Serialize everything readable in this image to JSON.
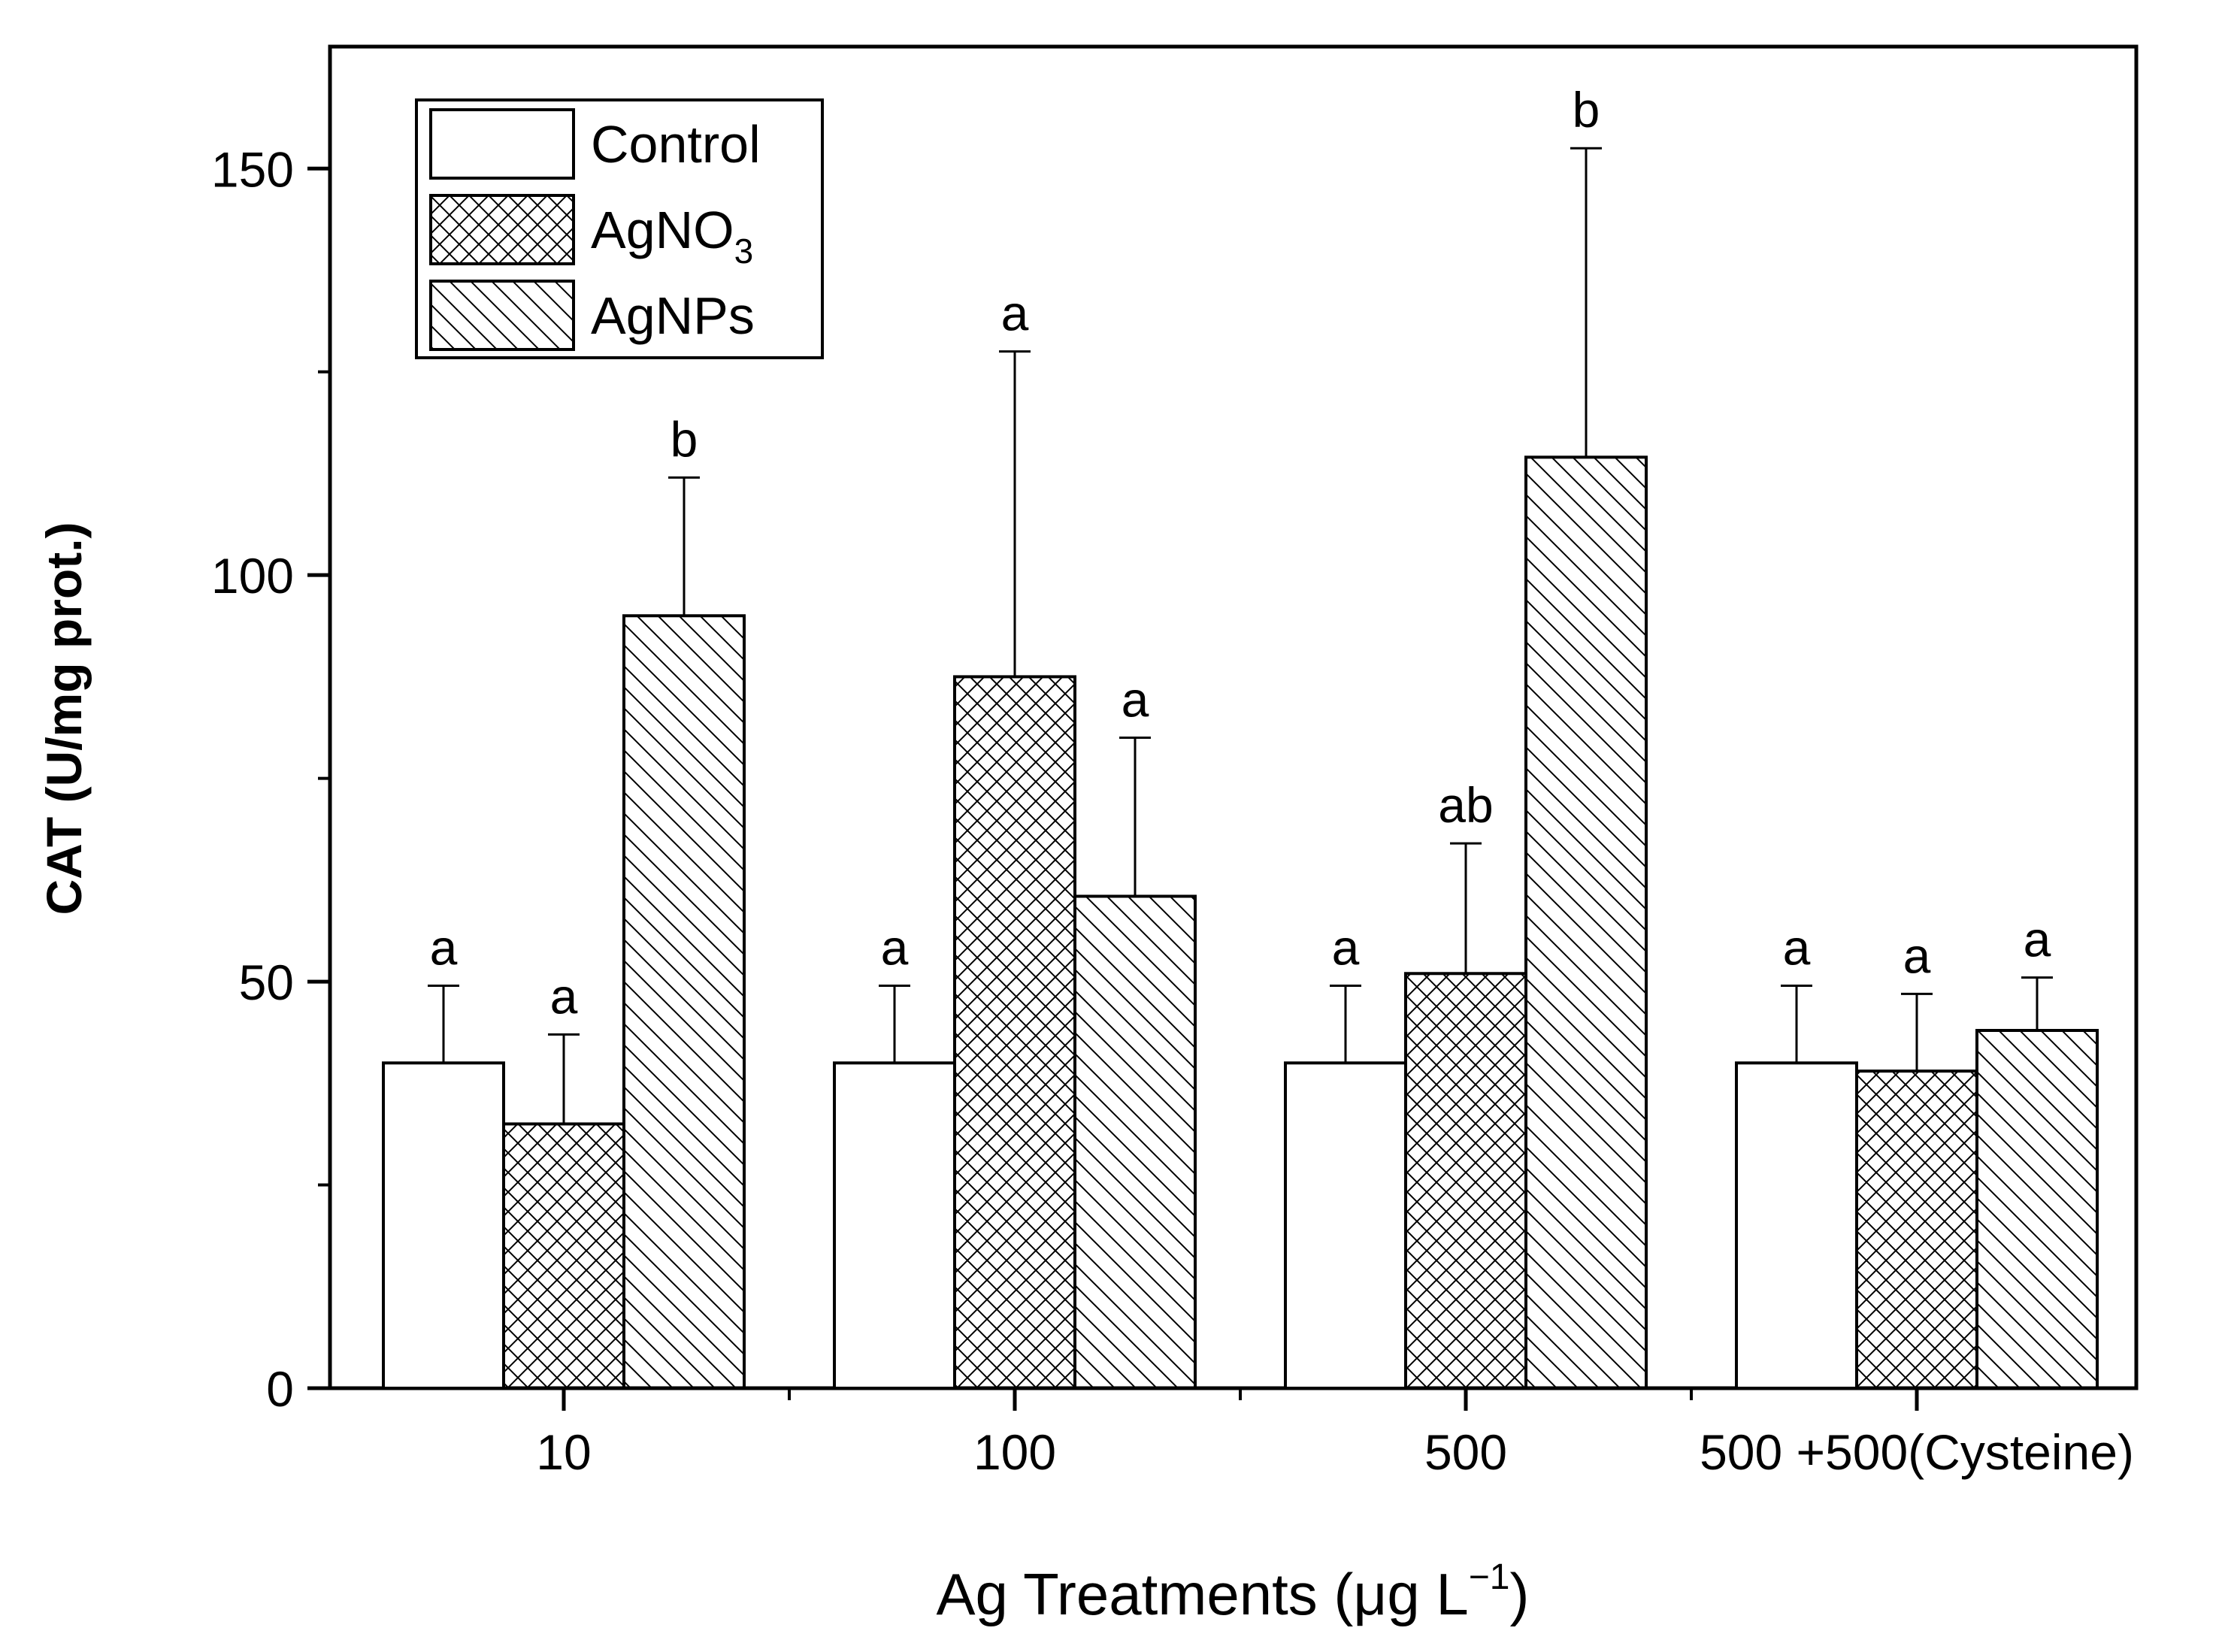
{
  "chart_data": {
    "type": "bar",
    "title": "",
    "xlabel_main": "Ag Treatments (μg L",
    "xlabel_sup": "−1",
    "xlabel_close": ")",
    "ylabel": "CAT (U/mg prot.)",
    "ylim": [
      0,
      165
    ],
    "yticks": [
      0,
      50,
      100,
      150
    ],
    "ytick_labels": [
      "0",
      "50",
      "100",
      "150"
    ],
    "categories": [
      "10",
      "100",
      "500",
      "500 +500(Cysteine)"
    ],
    "series": [
      {
        "name": "Control",
        "legend_main": "Control",
        "legend_sub": "",
        "pattern": "none",
        "values": [
          40,
          40,
          40,
          40
        ],
        "errors": [
          9.5,
          9.5,
          9.5,
          9.5
        ],
        "letters": [
          "a",
          "a",
          "a",
          "a"
        ]
      },
      {
        "name": "AgNO3",
        "legend_main": "AgNO",
        "legend_sub": "3",
        "pattern": "crosshatch",
        "values": [
          32.5,
          87.5,
          51,
          39
        ],
        "errors": [
          11,
          40,
          16,
          9.5
        ],
        "letters": [
          "a",
          "a",
          "ab",
          "a"
        ]
      },
      {
        "name": "AgNPs",
        "legend_main": "AgNPs",
        "legend_sub": "",
        "pattern": "diagonal",
        "values": [
          95,
          60.5,
          114.5,
          44
        ],
        "errors": [
          17,
          19.5,
          38,
          6.5
        ],
        "letters": [
          "b",
          "a",
          "b",
          "a"
        ]
      }
    ],
    "legend_position": "top-left",
    "grid": false
  }
}
